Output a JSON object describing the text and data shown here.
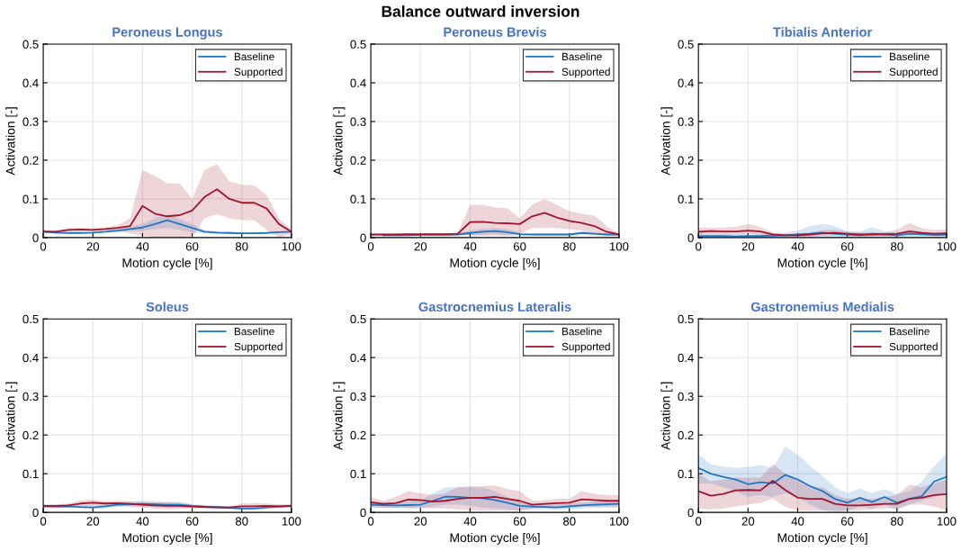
{
  "chart_data": [
    {
      "type": "line",
      "title": "Peroneus Longus",
      "xlabel": "Motion cycle [%]",
      "ylabel": "Activation [-]",
      "annotations": [
        "Balance outward inversion"
      ],
      "xlim": [
        0,
        100
      ],
      "xticks": [
        0,
        20,
        40,
        60,
        80,
        100
      ],
      "ylim": [
        0,
        0.5
      ],
      "yticks": [
        0,
        0.1,
        0.2,
        0.3,
        0.4,
        0.5
      ],
      "grid": true,
      "legend": "top right",
      "line_style": "solid",
      "marker": "none",
      "x": [
        0,
        5,
        10,
        15,
        20,
        25,
        30,
        35,
        40,
        45,
        50,
        55,
        60,
        65,
        70,
        75,
        80,
        85,
        90,
        95,
        100
      ],
      "series": [
        {
          "name": "Baseline",
          "color": "#1f77c4",
          "values": [
            0.015,
            0.013,
            0.012,
            0.012,
            0.013,
            0.015,
            0.018,
            0.022,
            0.026,
            0.035,
            0.045,
            0.035,
            0.025,
            0.015,
            0.013,
            0.012,
            0.011,
            0.011,
            0.012,
            0.014,
            0.015
          ],
          "lower": [
            0.012,
            0.01,
            0.01,
            0.01,
            0.011,
            0.012,
            0.014,
            0.016,
            0.018,
            0.022,
            0.025,
            0.02,
            0.014,
            0.011,
            0.01,
            0.009,
            0.009,
            0.009,
            0.01,
            0.012,
            0.013
          ],
          "upper": [
            0.018,
            0.016,
            0.015,
            0.015,
            0.016,
            0.018,
            0.022,
            0.028,
            0.035,
            0.05,
            0.06,
            0.048,
            0.035,
            0.02,
            0.016,
            0.015,
            0.014,
            0.014,
            0.015,
            0.016,
            0.017
          ]
        },
        {
          "name": "Supported",
          "color": "#a2142f",
          "values": [
            0.016,
            0.015,
            0.02,
            0.021,
            0.02,
            0.022,
            0.025,
            0.03,
            0.082,
            0.062,
            0.055,
            0.058,
            0.07,
            0.105,
            0.125,
            0.1,
            0.09,
            0.09,
            0.075,
            0.035,
            0.015
          ],
          "lower": [
            0.012,
            0.012,
            0.016,
            0.017,
            0.016,
            0.018,
            0.018,
            0.01,
            0.005,
            0,
            0,
            0,
            0,
            0.05,
            0.06,
            0.05,
            0.045,
            0.045,
            0.02,
            0,
            0.01
          ],
          "upper": [
            0.02,
            0.019,
            0.024,
            0.025,
            0.024,
            0.026,
            0.032,
            0.05,
            0.175,
            0.16,
            0.14,
            0.14,
            0.1,
            0.175,
            0.19,
            0.145,
            0.137,
            0.135,
            0.11,
            0.05,
            0.02
          ]
        }
      ]
    },
    {
      "type": "line",
      "title": "Peroneus Brevis",
      "xlabel": "Motion cycle [%]",
      "ylabel": "Activation [-]",
      "xlim": [
        0,
        100
      ],
      "xticks": [
        0,
        20,
        40,
        60,
        80,
        100
      ],
      "ylim": [
        0,
        0.5
      ],
      "yticks": [
        0,
        0.1,
        0.2,
        0.3,
        0.4,
        0.5
      ],
      "grid": true,
      "legend": "top right",
      "line_style": "solid",
      "marker": "none",
      "x": [
        0,
        5,
        10,
        15,
        20,
        25,
        30,
        35,
        40,
        45,
        50,
        55,
        60,
        65,
        70,
        75,
        80,
        85,
        90,
        95,
        100
      ],
      "series": [
        {
          "name": "Baseline",
          "color": "#1f77c4",
          "values": [
            null,
            0.006,
            0.006,
            0.006,
            0.007,
            0.007,
            0.007,
            0.008,
            0.012,
            0.015,
            0.017,
            0.014,
            0.009,
            0.008,
            0.008,
            0.008,
            0.008,
            0.012,
            0.01,
            0.008,
            0.008
          ],
          "lower": [
            0.005,
            0.004,
            0.004,
            0.004,
            0.005,
            0.005,
            0.005,
            0.006,
            0.006,
            0.007,
            0.009,
            0.006,
            0.005,
            0.005,
            0.005,
            0.005,
            0.005,
            0.008,
            0.007,
            0.005,
            0.005
          ],
          "upper": [
            0.011,
            0.01,
            0.01,
            0.01,
            0.011,
            0.011,
            0.011,
            0.012,
            0.018,
            0.023,
            0.025,
            0.022,
            0.013,
            0.011,
            0.011,
            0.011,
            0.011,
            0.016,
            0.013,
            0.011,
            0.011
          ]
        },
        {
          "name": "Supported",
          "color": "#a2142f",
          "values": [
            0.008,
            0.008,
            0.008,
            0.009,
            0.009,
            0.009,
            0.009,
            0.01,
            0.04,
            0.041,
            0.038,
            0.037,
            0.035,
            0.055,
            0.064,
            0.052,
            0.043,
            0.038,
            0.03,
            0.015,
            0.008
          ],
          "lower": [
            0.006,
            0.006,
            0.006,
            0.007,
            0.007,
            0.007,
            0.007,
            0.008,
            0.005,
            0.005,
            0.005,
            0.005,
            0.01,
            0.025,
            0.025,
            0.025,
            0.022,
            0.018,
            0.01,
            0.005,
            0.006
          ],
          "upper": [
            0.01,
            0.01,
            0.01,
            0.011,
            0.011,
            0.011,
            0.011,
            0.012,
            0.085,
            0.085,
            0.078,
            0.076,
            0.05,
            0.085,
            0.1,
            0.085,
            0.068,
            0.062,
            0.057,
            0.03,
            0.01
          ]
        }
      ]
    },
    {
      "type": "line",
      "title": "Tibialis Anterior",
      "xlabel": "Motion cycle [%]",
      "ylabel": "Activation [-]",
      "xlim": [
        0,
        100
      ],
      "xticks": [
        0,
        20,
        40,
        60,
        80,
        100
      ],
      "ylim": [
        0,
        0.5
      ],
      "yticks": [
        0,
        0.1,
        0.2,
        0.3,
        0.4,
        0.5
      ],
      "grid": true,
      "legend": "top right",
      "line_style": "solid",
      "marker": "none",
      "x": [
        0,
        5,
        10,
        15,
        20,
        25,
        30,
        35,
        40,
        45,
        50,
        55,
        60,
        65,
        70,
        75,
        80,
        85,
        90,
        95,
        100
      ],
      "series": [
        {
          "name": "Baseline",
          "color": "#1f77c4",
          "values": [
            0.004,
            0.004,
            0.004,
            0.003,
            0.004,
            0.004,
            0.005,
            0.006,
            0.008,
            0.01,
            0.013,
            0.01,
            0.008,
            0.006,
            0.01,
            0.008,
            0.006,
            0.01,
            0.009,
            0.007,
            0.007
          ],
          "lower": [
            0,
            0,
            0,
            0,
            0,
            0,
            0.001,
            0.002,
            0.002,
            0,
            0,
            0,
            0,
            0,
            0,
            0.002,
            0.001,
            0.003,
            0.003,
            0.002,
            0.002
          ],
          "upper": [
            0.01,
            0.01,
            0.01,
            0.009,
            0.01,
            0.01,
            0.01,
            0.012,
            0.018,
            0.03,
            0.035,
            0.03,
            0.016,
            0.015,
            0.027,
            0.016,
            0.012,
            0.02,
            0.016,
            0.013,
            0.013
          ]
        },
        {
          "name": "Supported",
          "color": "#a2142f",
          "values": [
            0.015,
            0.017,
            0.016,
            0.016,
            0.018,
            0.016,
            0.008,
            0.006,
            0.006,
            0.008,
            0.011,
            0.012,
            0.01,
            0.008,
            0.008,
            0.009,
            0.01,
            0.016,
            0.012,
            0.01,
            0.011
          ],
          "lower": [
            0.007,
            0.009,
            0.008,
            0.008,
            0.01,
            0.008,
            0.003,
            0.002,
            0.002,
            0.003,
            0.005,
            0.006,
            0.004,
            0.003,
            0.003,
            0.004,
            0.004,
            0.008,
            0.005,
            0.004,
            0.005
          ],
          "upper": [
            0.025,
            0.026,
            0.026,
            0.028,
            0.035,
            0.028,
            0.013,
            0.01,
            0.01,
            0.014,
            0.019,
            0.02,
            0.016,
            0.013,
            0.013,
            0.014,
            0.02,
            0.038,
            0.024,
            0.02,
            0.021
          ]
        }
      ]
    },
    {
      "type": "line",
      "title": "Soleus",
      "xlabel": "Motion cycle [%]",
      "ylabel": "Activation [-]",
      "xlim": [
        0,
        100
      ],
      "xticks": [
        0,
        20,
        40,
        60,
        80,
        100
      ],
      "ylim": [
        0,
        0.5
      ],
      "yticks": [
        0,
        0.1,
        0.2,
        0.3,
        0.4,
        0.5
      ],
      "grid": true,
      "legend": "top right",
      "line_style": "solid",
      "marker": "none",
      "x": [
        0,
        5,
        10,
        15,
        20,
        25,
        30,
        35,
        40,
        45,
        50,
        55,
        60,
        65,
        70,
        75,
        80,
        85,
        90,
        95,
        100
      ],
      "series": [
        {
          "name": "Baseline",
          "color": "#1f77c4",
          "values": [
            0.016,
            0.015,
            0.016,
            0.014,
            0.013,
            0.016,
            0.02,
            0.021,
            0.022,
            0.021,
            0.02,
            0.02,
            0.017,
            0.015,
            0.014,
            0.012,
            0.01,
            0.01,
            0.013,
            0.015,
            0.017
          ],
          "lower": [
            0.012,
            0.011,
            0.012,
            0.01,
            0.009,
            0.011,
            0.014,
            0.014,
            0.014,
            0.013,
            0.012,
            0.013,
            0.012,
            0.011,
            0.01,
            0.009,
            0.007,
            0.007,
            0.009,
            0.011,
            0.013
          ],
          "upper": [
            0.02,
            0.019,
            0.02,
            0.018,
            0.017,
            0.021,
            0.026,
            0.028,
            0.03,
            0.029,
            0.028,
            0.027,
            0.022,
            0.019,
            0.018,
            0.015,
            0.013,
            0.013,
            0.017,
            0.019,
            0.021
          ]
        },
        {
          "name": "Supported",
          "color": "#a2142f",
          "values": [
            0.017,
            0.017,
            0.018,
            0.023,
            0.025,
            0.023,
            0.024,
            0.022,
            0.02,
            0.018,
            0.017,
            0.017,
            0.015,
            0.014,
            0.013,
            0.013,
            0.016,
            0.016,
            0.017,
            0.016,
            0.017
          ],
          "lower": [
            0.013,
            0.013,
            0.014,
            0.016,
            0.017,
            0.017,
            0.018,
            0.016,
            0.013,
            0.01,
            0.008,
            0.009,
            0.011,
            0.011,
            0.01,
            0.01,
            0.011,
            0.011,
            0.012,
            0.012,
            0.013
          ],
          "upper": [
            0.021,
            0.021,
            0.023,
            0.031,
            0.033,
            0.029,
            0.03,
            0.028,
            0.027,
            0.026,
            0.026,
            0.025,
            0.019,
            0.017,
            0.016,
            0.016,
            0.023,
            0.024,
            0.023,
            0.021,
            0.021
          ]
        }
      ]
    },
    {
      "type": "line",
      "title": "Gastrocnemius Lateralis",
      "xlabel": "Motion cycle [%]",
      "ylabel": "Activation [-]",
      "xlim": [
        0,
        100
      ],
      "xticks": [
        0,
        20,
        40,
        60,
        80,
        100
      ],
      "ylim": [
        0,
        0.5
      ],
      "yticks": [
        0,
        0.1,
        0.2,
        0.3,
        0.4,
        0.5
      ],
      "grid": true,
      "legend": "top right",
      "line_style": "solid",
      "marker": "none",
      "x": [
        0,
        5,
        10,
        15,
        20,
        25,
        30,
        35,
        40,
        45,
        50,
        55,
        60,
        65,
        70,
        75,
        80,
        85,
        90,
        95,
        100
      ],
      "series": [
        {
          "name": "Baseline",
          "color": "#1f77c4",
          "values": [
            0.02,
            0.019,
            0.018,
            0.019,
            0.02,
            0.03,
            0.041,
            0.04,
            0.038,
            0.037,
            0.032,
            0.025,
            0.017,
            0.015,
            0.014,
            0.013,
            0.016,
            0.018,
            0.02,
            0.021,
            0.022
          ],
          "lower": [
            0.012,
            0.012,
            0.011,
            0.01,
            0.01,
            0.015,
            0.02,
            0.02,
            0.018,
            0.012,
            0.01,
            0.008,
            0.005,
            0.008,
            0.008,
            0.008,
            0.008,
            0.01,
            0.012,
            0.012,
            0.012
          ],
          "upper": [
            0.028,
            0.026,
            0.025,
            0.028,
            0.032,
            0.05,
            0.065,
            0.065,
            0.065,
            0.065,
            0.055,
            0.04,
            0.028,
            0.022,
            0.02,
            0.02,
            0.022,
            0.025,
            0.028,
            0.03,
            0.03
          ]
        },
        {
          "name": "Supported",
          "color": "#a2142f",
          "values": [
            0.026,
            0.022,
            0.024,
            0.033,
            0.032,
            0.028,
            0.03,
            0.035,
            0.038,
            0.038,
            0.04,
            0.035,
            0.03,
            0.02,
            0.022,
            0.024,
            0.025,
            0.034,
            0.032,
            0.03,
            0.03
          ],
          "lower": [
            0.014,
            0.012,
            0.012,
            0.012,
            0.012,
            0.01,
            0.01,
            0.008,
            0.005,
            0.005,
            0.005,
            0.005,
            0.005,
            0.01,
            0.012,
            0.012,
            0.012,
            0.015,
            0.015,
            0.015,
            0.015
          ],
          "upper": [
            0.04,
            0.03,
            0.04,
            0.055,
            0.05,
            0.045,
            0.05,
            0.065,
            0.068,
            0.068,
            0.07,
            0.06,
            0.055,
            0.03,
            0.032,
            0.035,
            0.035,
            0.055,
            0.048,
            0.045,
            0.045
          ]
        }
      ]
    },
    {
      "type": "line",
      "title": "Gastronemius Medialis",
      "xlabel": "Motion cycle [%]",
      "ylabel": "Activation [-]",
      "xlim": [
        0,
        100
      ],
      "xticks": [
        0,
        20,
        40,
        60,
        80,
        100
      ],
      "ylim": [
        0,
        0.5
      ],
      "yticks": [
        0,
        0.1,
        0.2,
        0.3,
        0.4,
        0.5
      ],
      "grid": true,
      "legend": "top right",
      "line_style": "solid",
      "marker": "none",
      "x": [
        0,
        5,
        10,
        15,
        20,
        25,
        30,
        35,
        40,
        45,
        50,
        55,
        60,
        65,
        70,
        75,
        80,
        85,
        90,
        95,
        100
      ],
      "series": [
        {
          "name": "Baseline",
          "color": "#1f77c4",
          "values": [
            0.115,
            0.1,
            0.092,
            0.085,
            0.073,
            0.078,
            0.075,
            0.097,
            0.085,
            0.068,
            0.055,
            0.035,
            0.025,
            0.038,
            0.027,
            0.04,
            0.025,
            0.035,
            0.042,
            0.08,
            0.092
          ],
          "lower": [
            0.075,
            0.075,
            0.065,
            0.055,
            0.04,
            0.045,
            0.04,
            0.05,
            0.04,
            0.02,
            0.005,
            0,
            0.005,
            0.015,
            0.01,
            0.02,
            0.005,
            0.02,
            0.03,
            0.04,
            0.05
          ],
          "upper": [
            0.15,
            0.125,
            0.118,
            0.115,
            0.118,
            0.122,
            0.115,
            0.17,
            0.15,
            0.12,
            0.095,
            0.065,
            0.05,
            0.062,
            0.05,
            0.06,
            0.048,
            0.055,
            0.08,
            0.12,
            0.152
          ]
        },
        {
          "name": "Supported",
          "color": "#a2142f",
          "values": [
            0.055,
            0.043,
            0.048,
            0.057,
            0.058,
            0.057,
            0.082,
            0.058,
            0.038,
            0.035,
            0.035,
            0.022,
            0.018,
            0.018,
            0.02,
            0.022,
            0.022,
            0.035,
            0.038,
            0.045,
            0.047
          ],
          "lower": [
            0.01,
            0.008,
            0.01,
            0.015,
            0.02,
            0.025,
            0.035,
            0.015,
            0.005,
            0.005,
            0.005,
            0.005,
            0.005,
            0.005,
            0.008,
            0.01,
            0.01,
            0.02,
            0.02,
            0.015,
            0.005
          ],
          "upper": [
            0.1,
            0.08,
            0.085,
            0.09,
            0.09,
            0.09,
            0.125,
            0.1,
            0.08,
            0.065,
            0.065,
            0.045,
            0.035,
            0.035,
            0.035,
            0.04,
            0.045,
            0.072,
            0.065,
            0.075,
            0.085
          ]
        }
      ]
    }
  ]
}
